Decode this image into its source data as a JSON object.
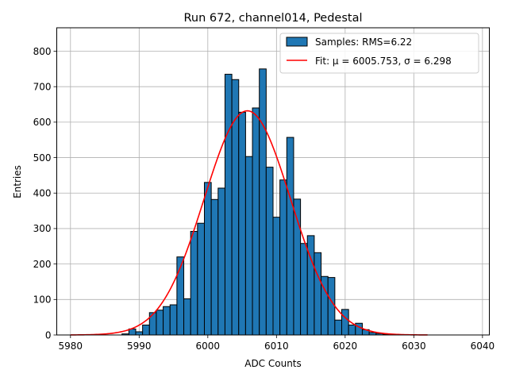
{
  "chart_data": {
    "type": "bar",
    "title": "Run 672, channel014, Pedestal",
    "xlabel": "ADC Counts",
    "ylabel": "Entries",
    "xlim": [
      5978,
      6041
    ],
    "ylim": [
      0,
      866
    ],
    "xticks": [
      5980,
      5990,
      6000,
      6010,
      6020,
      6030,
      6040
    ],
    "yticks": [
      0,
      100,
      200,
      300,
      400,
      500,
      600,
      700,
      800
    ],
    "grid": true,
    "legend_position": "top-right",
    "legend": {
      "samples_label": "Samples: RMS=6.22",
      "fit_label": "Fit: μ = 6005.753, σ = 6.298"
    },
    "colors": {
      "bar_fill": "#1f77b4",
      "bar_edge": "#000000",
      "fit_line": "#ff0000",
      "grid": "#b0b0b0"
    },
    "histogram": {
      "bin_width": 1,
      "bins": [
        {
          "x": 5988,
          "count": 3
        },
        {
          "x": 5989,
          "count": 17
        },
        {
          "x": 5990,
          "count": 9
        },
        {
          "x": 5991,
          "count": 28
        },
        {
          "x": 5992,
          "count": 63
        },
        {
          "x": 5993,
          "count": 70
        },
        {
          "x": 5994,
          "count": 80
        },
        {
          "x": 5995,
          "count": 85
        },
        {
          "x": 5996,
          "count": 220
        },
        {
          "x": 5997,
          "count": 102
        },
        {
          "x": 5998,
          "count": 292
        },
        {
          "x": 5999,
          "count": 315
        },
        {
          "x": 6000,
          "count": 430
        },
        {
          "x": 6001,
          "count": 382
        },
        {
          "x": 6002,
          "count": 414
        },
        {
          "x": 6003,
          "count": 735
        },
        {
          "x": 6004,
          "count": 720
        },
        {
          "x": 6005,
          "count": 628
        },
        {
          "x": 6006,
          "count": 503
        },
        {
          "x": 6007,
          "count": 640
        },
        {
          "x": 6008,
          "count": 750
        },
        {
          "x": 6009,
          "count": 473
        },
        {
          "x": 6010,
          "count": 332
        },
        {
          "x": 6011,
          "count": 437
        },
        {
          "x": 6012,
          "count": 557
        },
        {
          "x": 6013,
          "count": 383
        },
        {
          "x": 6014,
          "count": 258
        },
        {
          "x": 6015,
          "count": 280
        },
        {
          "x": 6016,
          "count": 232
        },
        {
          "x": 6017,
          "count": 165
        },
        {
          "x": 6018,
          "count": 162
        },
        {
          "x": 6019,
          "count": 42
        },
        {
          "x": 6020,
          "count": 72
        },
        {
          "x": 6021,
          "count": 28
        },
        {
          "x": 6022,
          "count": 33
        },
        {
          "x": 6023,
          "count": 15
        },
        {
          "x": 6024,
          "count": 7
        },
        {
          "x": 6025,
          "count": 4
        },
        {
          "x": 6026,
          "count": 2
        }
      ]
    },
    "fit": {
      "mu": 6005.753,
      "sigma": 6.298,
      "amplitude": 632,
      "x_range": [
        5980,
        6032
      ]
    }
  }
}
